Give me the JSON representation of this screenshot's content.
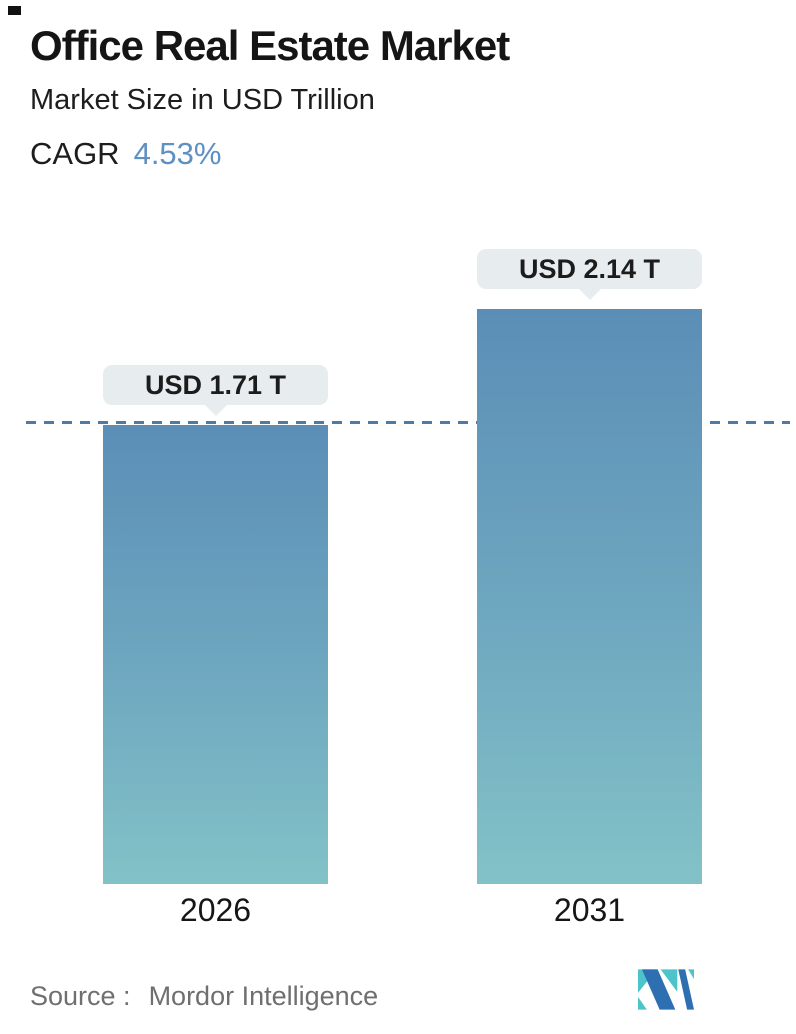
{
  "header": {
    "title": "Office Real Estate Market",
    "subtitle": "Market Size in USD Trillion",
    "cagr_label": "CAGR",
    "cagr_value": "4.53%"
  },
  "chart_data": {
    "type": "bar",
    "title": "Office Real Estate Market",
    "subtitle": "Market Size in USD Trillion",
    "cagr": "4.53%",
    "categories": [
      "2026",
      "2031"
    ],
    "values": [
      1.71,
      2.14
    ],
    "unit": "USD Trillion",
    "data_labels": [
      "USD 1.71 T",
      "USD 2.14 T"
    ],
    "ylim": [
      0,
      2.2
    ],
    "grid": false,
    "legend": false,
    "reference_line": {
      "value": 1.71,
      "style": "dashed",
      "color": "#4e7ba3"
    },
    "bar_gradient_top": "#5b8eb6",
    "bar_gradient_bottom": "#82c2c7"
  },
  "bars": [
    {
      "year": "2026",
      "label": "USD 1.71 T",
      "value": 1.71
    },
    {
      "year": "2031",
      "label": "USD 2.14 T",
      "value": 2.14
    }
  ],
  "footer": {
    "source_label": "Source :",
    "source_value": "Mordor Intelligence",
    "logo": "mordor-intelligence-logo"
  },
  "colors": {
    "accent_blue": "#5e90c1",
    "dashed_line": "#4e7ba3",
    "tooltip_bg": "#e7edee",
    "bar_top": "#5b8eb6",
    "bar_bottom": "#82c2c7",
    "source_text": "#6f6f6f",
    "logo_teal": "#4cc4c9",
    "logo_blue": "#2e6fb2"
  }
}
